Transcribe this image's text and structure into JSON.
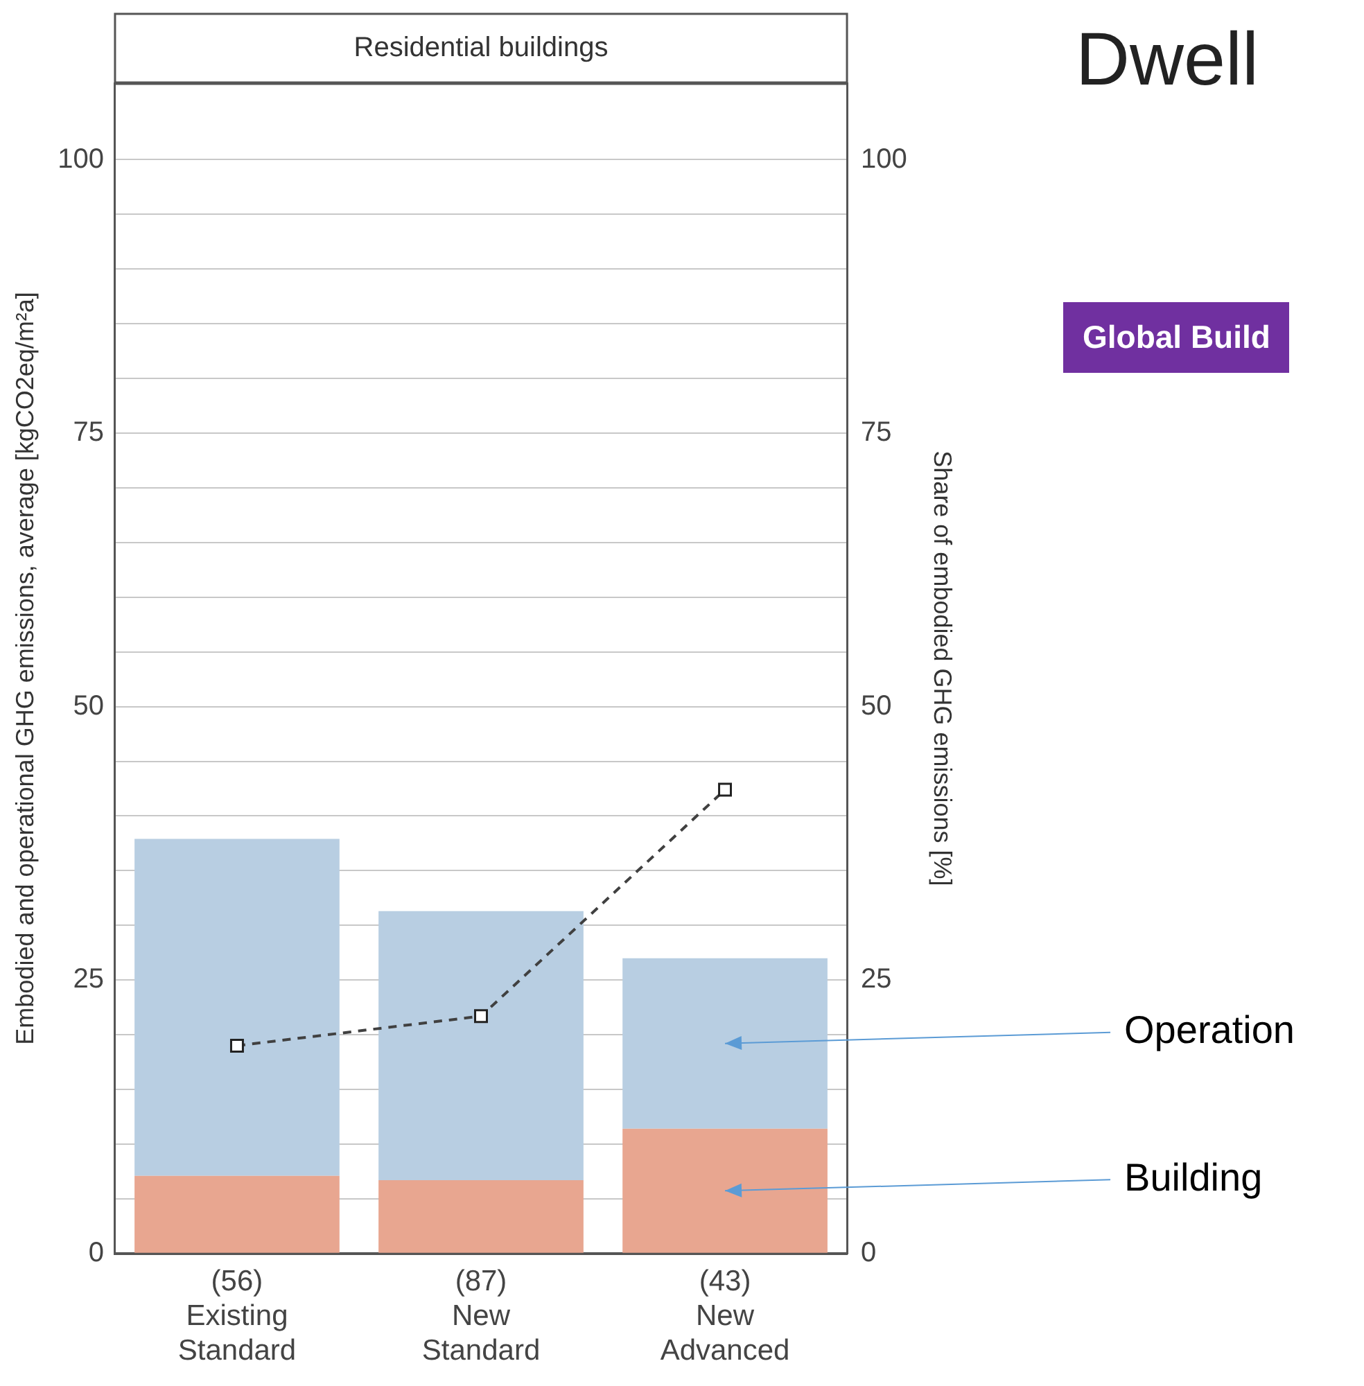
{
  "chart_data": {
    "type": "bar",
    "title": "Dwell",
    "subtitle": "Residential buildings",
    "annotations": [
      "Global Build"
    ],
    "ylabel": "Embodied and operational GHG emissions, average [kgCO2eq/m²a]",
    "y2label": "Share of embodied GHG emissions [%]",
    "categories": [
      "(56)\nExisting\nStandard",
      "(87)\nNew\nStandard",
      "(43)\nNew\nAdvanced"
    ],
    "stacked": true,
    "grid": "y",
    "legend": false,
    "series": [
      {
        "name": "Building",
        "color": "#e8a690",
        "values": [
          7.1,
          6.7,
          11.4
        ]
      },
      {
        "name": "Operation",
        "color": "#b8cee2",
        "values": [
          30.8,
          24.6,
          15.6
        ]
      },
      {
        "type": "line",
        "axis": "y2",
        "color": "#404040",
        "values": [
          19.0,
          21.7,
          42.4
        ],
        "marker": "square",
        "line_style": "dashed"
      }
    ],
    "ylim": [
      0,
      107
    ],
    "yticks": [
      0,
      {
        "value": 5,
        "label": null
      },
      {
        "value": 10,
        "label": null
      },
      {
        "value": 15,
        "label": null
      },
      {
        "value": 20,
        "label": null
      },
      25,
      {
        "value": 30,
        "label": null
      },
      {
        "value": 35,
        "label": null
      },
      {
        "value": 40,
        "label": null
      },
      {
        "value": 45,
        "label": null
      },
      50,
      {
        "value": 55,
        "label": null
      },
      {
        "value": 60,
        "label": null
      },
      {
        "value": 65,
        "label": null
      },
      {
        "value": 70,
        "label": null
      },
      75,
      {
        "value": 80,
        "label": null
      },
      {
        "value": 85,
        "label": null
      },
      {
        "value": 90,
        "label": null
      },
      {
        "value": 95,
        "label": null
      },
      100
    ],
    "y2lim": [
      0,
      107
    ],
    "y2ticks": [
      0,
      25,
      50,
      75,
      100
    ]
  }
}
